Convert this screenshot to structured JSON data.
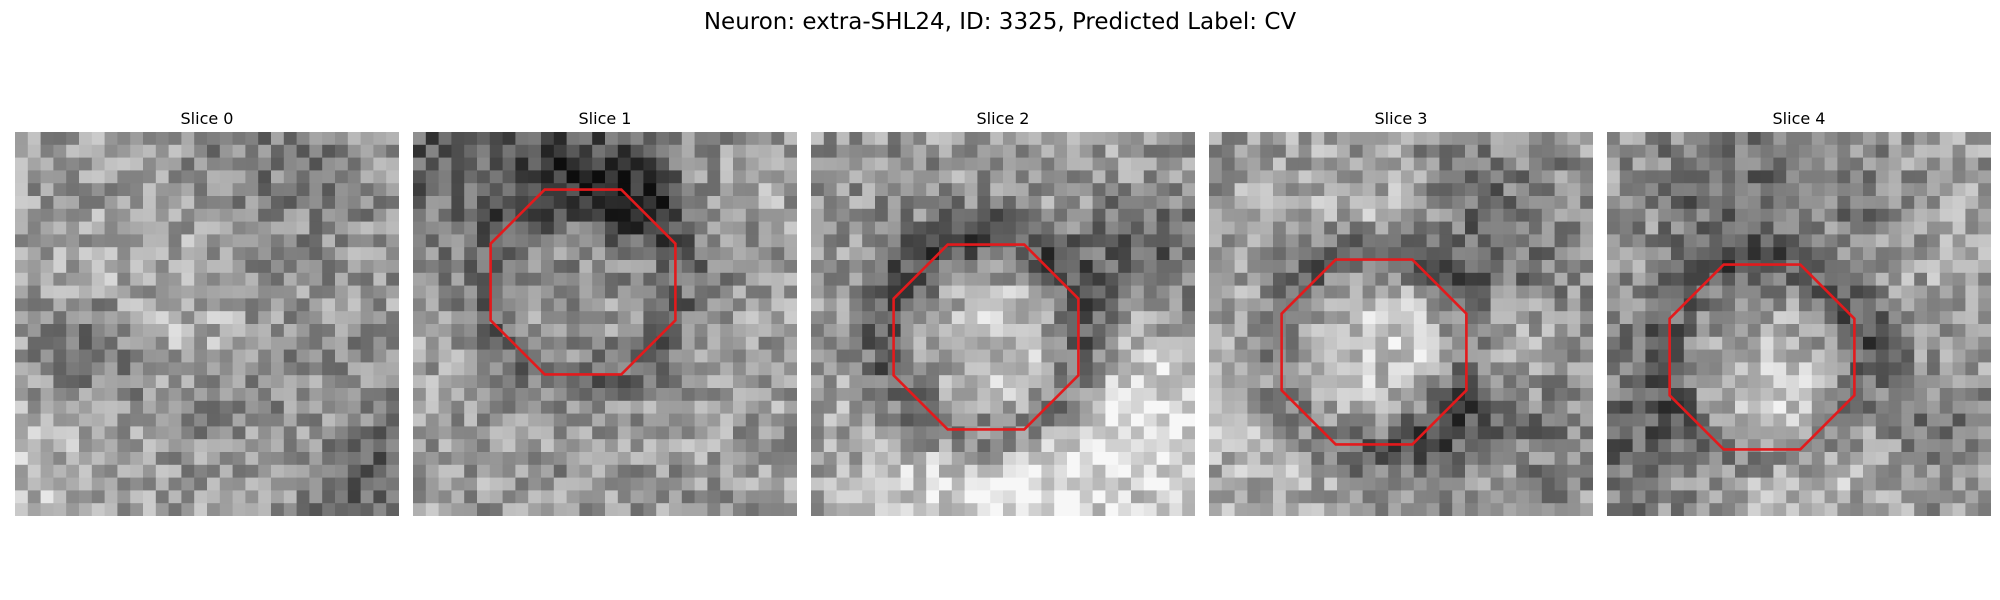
{
  "figure": {
    "title": "Neuron: extra-SHL24, ID: 3325, Predicted Label: CV"
  },
  "panels": [
    {
      "title": "Slice 0",
      "has_outline": false,
      "seed": 11,
      "dark_ring": 0.15
    },
    {
      "title": "Slice 1",
      "has_outline": true,
      "seed": 23,
      "dark_ring": 0.55
    },
    {
      "title": "Slice 2",
      "has_outline": true,
      "seed": 37,
      "dark_ring": 0.9
    },
    {
      "title": "Slice 3",
      "has_outline": true,
      "seed": 51,
      "dark_ring": 0.8
    },
    {
      "title": "Slice 4",
      "has_outline": true,
      "seed": 67,
      "dark_ring": 0.6
    }
  ],
  "style": {
    "outline_color": "#e31a1c",
    "colormap": "gray"
  }
}
